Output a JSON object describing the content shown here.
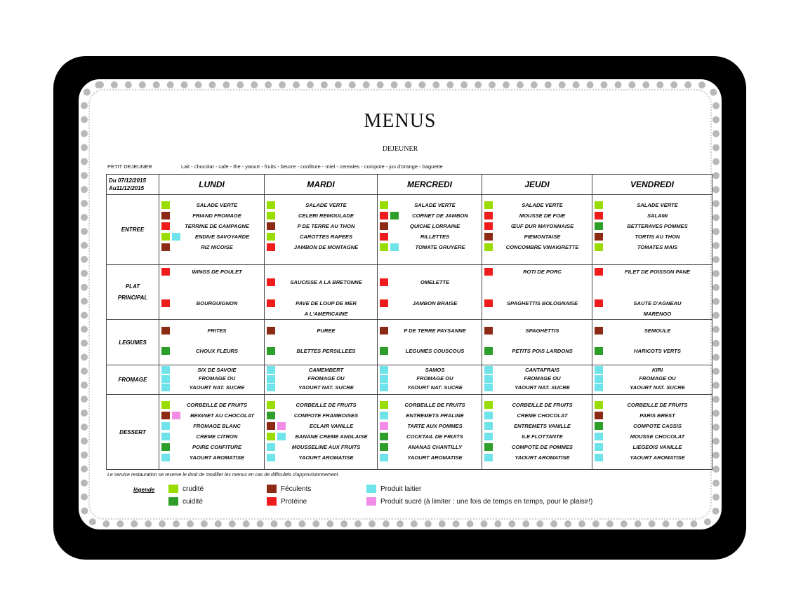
{
  "colors": {
    "crudite": "#99dd00",
    "cuidite": "#2e9e2a",
    "feculents": "#8c2a16",
    "proteine": "#ee1c1c",
    "laitier": "#6fe3ea",
    "sucre": "#f28ce6"
  },
  "header": {
    "title": "MENUS",
    "subtitle": "DEJEUNER"
  },
  "breakfast": {
    "label": "PETIT DEJEUNER",
    "items": "Lait - chocolat - cafe - the - yaourt - fruits - beurre - confiture - miel - cereales - compote - jus d'orange - baguette"
  },
  "period": {
    "line1": "Du 07/12/2015",
    "line2": "Au11/12/2015"
  },
  "days": [
    "LUNDI",
    "MARDI",
    "MERCREDI",
    "JEUDI",
    "VENDREDI"
  ],
  "categories": [
    {
      "name": "ENTREE"
    },
    {
      "name": "PLAT PRINCIPAL"
    },
    {
      "name": "LEGUMES"
    },
    {
      "name": "FROMAGE"
    },
    {
      "name": "DESSERT"
    }
  ],
  "menu": {
    "entree": [
      [
        {
          "text": "SALADE VERTE",
          "c": [
            "crudite"
          ]
        },
        {
          "text": "FRIAND FROMAGE",
          "c": [
            "feculents"
          ]
        },
        {
          "text": "TERRINE DE CAMPAGNE",
          "c": [
            "proteine"
          ]
        },
        {
          "text": "ENDIVE SAVOYARDE",
          "c": [
            "crudite",
            "laitier"
          ]
        },
        {
          "text": "RIZ NICOISE",
          "c": [
            "feculents"
          ]
        }
      ],
      [
        {
          "text": "SALADE VERTE",
          "c": [
            "crudite"
          ]
        },
        {
          "text": "CELERI REMOULADE",
          "c": [
            "crudite"
          ]
        },
        {
          "text": "P DE TERRE AU THON",
          "c": [
            "feculents"
          ]
        },
        {
          "text": "CAROTTES RAPEES",
          "c": [
            "crudite"
          ]
        },
        {
          "text": "JAMBON DE MONTAGNE",
          "c": [
            "proteine"
          ]
        }
      ],
      [
        {
          "text": "SALADE VERTE",
          "c": [
            "crudite"
          ]
        },
        {
          "text": "CORNET DE JAMBON",
          "c": [
            "proteine",
            "cuidite"
          ]
        },
        {
          "text": "QUICHE LORRAINE",
          "c": [
            "feculents"
          ]
        },
        {
          "text": "RILLETTES",
          "c": [
            "proteine"
          ]
        },
        {
          "text": "TOMATE GRUYERE",
          "c": [
            "crudite",
            "laitier"
          ]
        }
      ],
      [
        {
          "text": "SALADE VERTE",
          "c": [
            "crudite"
          ]
        },
        {
          "text": "MOUSSE DE FOIE",
          "c": [
            "proteine"
          ]
        },
        {
          "text": "ŒUF DUR MAYONNAISE",
          "c": [
            "proteine"
          ]
        },
        {
          "text": "PIEMONTAISE",
          "c": [
            "feculents"
          ]
        },
        {
          "text": "CONCOMBRE VINAIGRETTE",
          "c": [
            "crudite"
          ]
        }
      ],
      [
        {
          "text": "SALADE VERTE",
          "c": [
            "crudite"
          ]
        },
        {
          "text": "SALAMI",
          "c": [
            "proteine"
          ]
        },
        {
          "text": "BETTERAVES POMMES",
          "c": [
            "cuidite"
          ]
        },
        {
          "text": "TORTIS AU THON",
          "c": [
            "feculents"
          ]
        },
        {
          "text": "TOMATES MAIS",
          "c": [
            "crudite"
          ]
        }
      ]
    ],
    "plat": [
      [
        {
          "text": "WINGS DE POULET",
          "c": [
            "proteine"
          ],
          "row": 0
        },
        {
          "text": "BOURGUIGNON",
          "c": [
            "proteine"
          ],
          "row": 3
        }
      ],
      [
        {
          "text": "SAUCISSE A LA BRETONNE",
          "c": [
            "proteine"
          ],
          "row": 1
        },
        {
          "text": "PAVE DE LOUP DE MER",
          "c": [
            "proteine"
          ],
          "row": 3
        },
        {
          "text": "A L'AMERICAINE",
          "c": [],
          "row": 4
        }
      ],
      [
        {
          "text": "OMELETTE",
          "c": [
            "proteine"
          ],
          "row": 1
        },
        {
          "text": "JAMBON BRAISE",
          "c": [
            "proteine"
          ],
          "row": 3
        }
      ],
      [
        {
          "text": "ROTI DE PORC",
          "c": [
            "proteine"
          ],
          "row": 0
        },
        {
          "text": "SPAGHETTIS BOLOGNAISE",
          "c": [
            "proteine"
          ],
          "row": 3
        }
      ],
      [
        {
          "text": "FILET DE POISSON PANE",
          "c": [
            "proteine"
          ],
          "row": 0
        },
        {
          "text": "SAUTE D'AGNEAU",
          "c": [
            "proteine"
          ],
          "row": 3
        },
        {
          "text": "MARENGO",
          "c": [],
          "row": 4
        }
      ]
    ],
    "legumes": [
      [
        {
          "text": "FRITES",
          "c": [
            "feculents"
          ]
        },
        {
          "text": "CHOUX FLEURS",
          "c": [
            "cuidite"
          ]
        }
      ],
      [
        {
          "text": "PUREE",
          "c": [
            "feculents"
          ]
        },
        {
          "text": "BLETTES PERSILLEES",
          "c": [
            "cuidite"
          ]
        }
      ],
      [
        {
          "text": "P DE TERRE PAYSANNE",
          "c": [
            "feculents"
          ]
        },
        {
          "text": "LEGUMES COUSCOUS",
          "c": [
            "cuidite"
          ]
        }
      ],
      [
        {
          "text": "SPAGHETTIS",
          "c": [
            "feculents"
          ]
        },
        {
          "text": "PETITS POIS LARDONS",
          "c": [
            "cuidite"
          ]
        }
      ],
      [
        {
          "text": "SEMOULE",
          "c": [
            "feculents"
          ]
        },
        {
          "text": "HARICOTS VERTS",
          "c": [
            "cuidite"
          ]
        }
      ]
    ],
    "fromage": [
      [
        {
          "text": "SIX DE SAVOIE",
          "c": [
            "laitier"
          ]
        },
        {
          "text": "FROMAGE OU",
          "c": [
            "laitier"
          ]
        },
        {
          "text": "YAOURT NAT. SUCRE",
          "c": [
            "laitier"
          ]
        }
      ],
      [
        {
          "text": "CAMEMBERT",
          "c": [
            "laitier"
          ]
        },
        {
          "text": "FROMAGE OU",
          "c": [
            "laitier"
          ]
        },
        {
          "text": "YAOURT NAT. SUCRE",
          "c": [
            "laitier"
          ]
        }
      ],
      [
        {
          "text": "SAMOS",
          "c": [
            "laitier"
          ]
        },
        {
          "text": "FROMAGE OU",
          "c": [
            "laitier"
          ]
        },
        {
          "text": "YAOURT NAT. SUCRE",
          "c": [
            "laitier"
          ]
        }
      ],
      [
        {
          "text": "CANTAFRAIS",
          "c": [
            "laitier"
          ]
        },
        {
          "text": "FROMAGE OU",
          "c": [
            "laitier"
          ]
        },
        {
          "text": "YAOURT NAT. SUCRE",
          "c": [
            "laitier"
          ]
        }
      ],
      [
        {
          "text": "KIRI",
          "c": [
            "laitier"
          ]
        },
        {
          "text": "FROMAGE OU",
          "c": [
            "laitier"
          ]
        },
        {
          "text": "YAOURT NAT. SUCRE",
          "c": [
            "laitier"
          ]
        }
      ]
    ],
    "dessert": [
      [
        {
          "text": "CORBEILLE DE FRUITS",
          "c": [
            "crudite"
          ]
        },
        {
          "text": "BEIGNET AU CHOCOLAT",
          "c": [
            "feculents",
            "sucre"
          ]
        },
        {
          "text": "FROMAGE BLANC",
          "c": [
            "laitier"
          ]
        },
        {
          "text": "CREME CITRON",
          "c": [
            "laitier"
          ]
        },
        {
          "text": "POIRE CONFITURE",
          "c": [
            "cuidite"
          ]
        },
        {
          "text": "YAOURT AROMATISE",
          "c": [
            "laitier"
          ]
        }
      ],
      [
        {
          "text": "CORBEILLE DE FRUITS",
          "c": [
            "crudite"
          ]
        },
        {
          "text": "COMPOTE FRAMBOISES",
          "c": [
            "cuidite"
          ]
        },
        {
          "text": "ECLAIR VANILLE",
          "c": [
            "feculents",
            "sucre"
          ]
        },
        {
          "text": "BANANE CREME ANGLAISE",
          "c": [
            "crudite",
            "laitier"
          ]
        },
        {
          "text": "MOUSSELINE AUX FRUITS",
          "c": [
            "laitier"
          ]
        },
        {
          "text": "YAOURT AROMATISE",
          "c": [
            "laitier"
          ]
        }
      ],
      [
        {
          "text": "CORBEILLE DE FRUITS",
          "c": [
            "crudite"
          ]
        },
        {
          "text": "ENTREMETS PRALINE",
          "c": [
            "laitier"
          ]
        },
        {
          "text": "TARTE AUX POMMES",
          "c": [
            "sucre"
          ]
        },
        {
          "text": "COCKTAIL DE FRUITS",
          "c": [
            "cuidite"
          ]
        },
        {
          "text": "ANANAS CHANTILLY",
          "c": [
            "cuidite"
          ]
        },
        {
          "text": "YAOURT AROMATISE",
          "c": [
            "laitier"
          ]
        }
      ],
      [
        {
          "text": "CORBEILLE DE FRUITS",
          "c": [
            "crudite"
          ]
        },
        {
          "text": "CREME CHOCOLAT",
          "c": [
            "laitier"
          ]
        },
        {
          "text": "ENTREMETS VANILLE",
          "c": [
            "laitier"
          ]
        },
        {
          "text": "ILE FLOTTANTE",
          "c": [
            "laitier"
          ]
        },
        {
          "text": "COMPOTE DE POMMES",
          "c": [
            "cuidite"
          ]
        },
        {
          "text": "YAOURT AROMATISE",
          "c": [
            "laitier"
          ]
        }
      ],
      [
        {
          "text": "CORBEILLE DE FRUITS",
          "c": [
            "crudite"
          ]
        },
        {
          "text": "PARIS BREST",
          "c": [
            "feculents"
          ]
        },
        {
          "text": "COMPOTE CASSIS",
          "c": [
            "cuidite"
          ]
        },
        {
          "text": "MOUSSE CHOCOLAT",
          "c": [
            "laitier"
          ]
        },
        {
          "text": "LIEGEOIS VANILLE",
          "c": [
            "laitier"
          ]
        },
        {
          "text": "YAOURT AROMATISE",
          "c": [
            "laitier"
          ]
        }
      ]
    ]
  },
  "note": "Le service restauration se reserve le droit de modifier les menus en cas de difficultés d'approvisionnement",
  "legend": {
    "title": "légende",
    "crudite": "crudité",
    "cuidite": "cuidité",
    "feculents": "Féculents",
    "proteine": "Protéine",
    "laitier": "Produit laitier",
    "sucre": "Produit sucré (à limiter : une fois de temps en temps, pour le plaisir!)"
  }
}
